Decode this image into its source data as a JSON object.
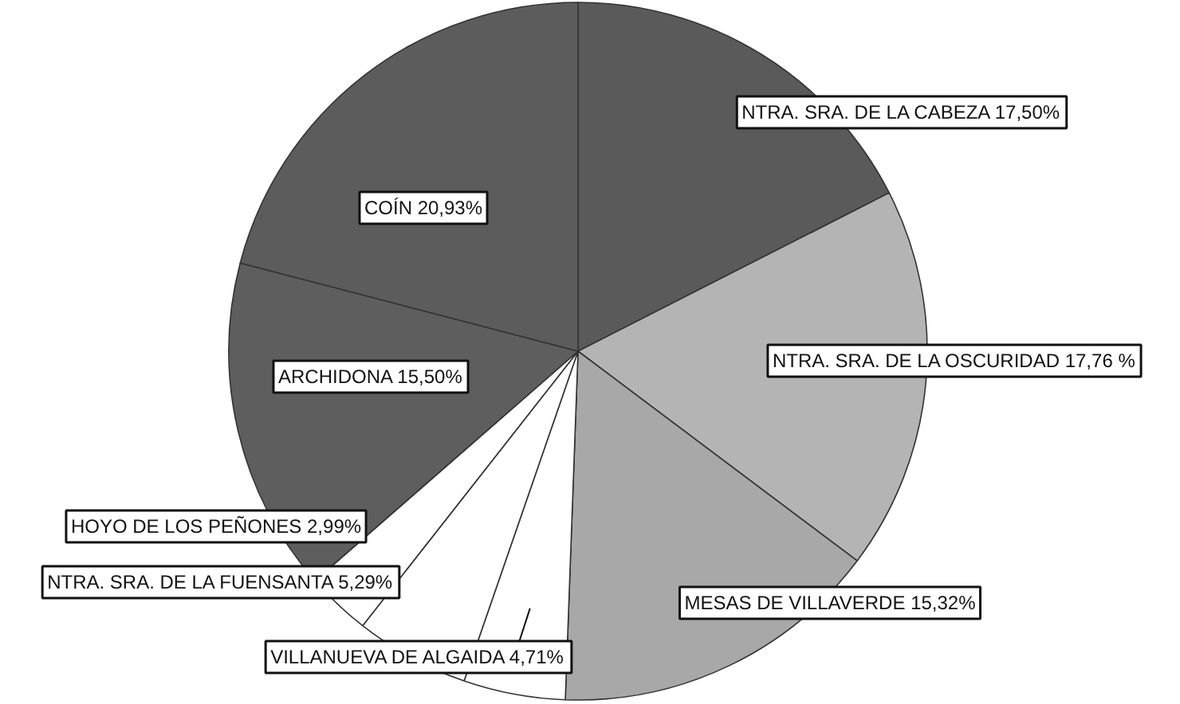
{
  "chart_data": {
    "type": "pie",
    "categories": [
      "NTRA. SRA. DE LA CABEZA",
      "NTRA. SRA. DE LA OSCURIDAD",
      "MESAS DE VILLAVERDE",
      "VILLANUEVA DE ALGAIDA",
      "NTRA. SRA. DE LA FUENSANTA",
      "HOYO DE LOS PEÑONES",
      "ARCHIDONA",
      "COÍN"
    ],
    "values": [
      17.5,
      17.76,
      15.32,
      4.71,
      5.29,
      2.99,
      15.5,
      20.93
    ],
    "value_labels": [
      "17,50%",
      "17,76 %",
      "15,32%",
      "4,71%",
      "5,29%",
      "2,99%",
      "15,50%",
      "20,93%"
    ],
    "colors": [
      "#5a5a5a",
      "#b4b4b4",
      "#a8a8a8",
      "#ffffff",
      "#ffffff",
      "#ffffff",
      "#5e5e5e",
      "#5c5c5c"
    ]
  }
}
